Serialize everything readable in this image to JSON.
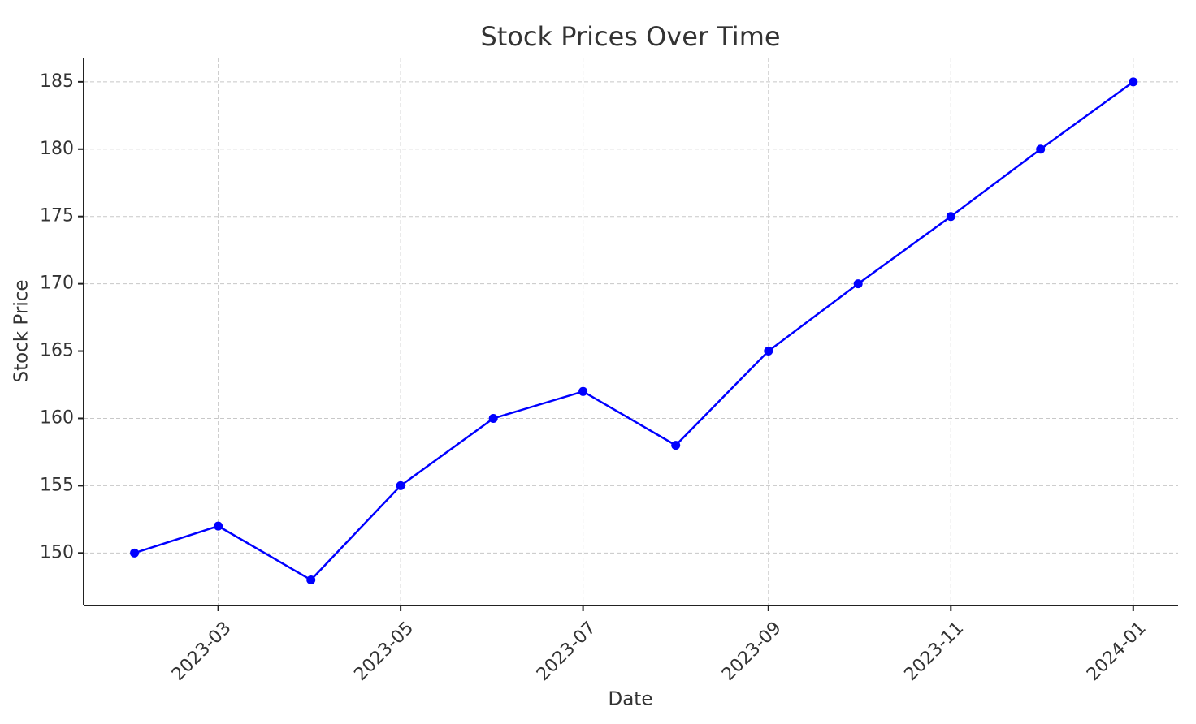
{
  "chart_data": {
    "type": "line",
    "title": "Stock Prices Over Time",
    "x_label": "Date",
    "y_label": "Stock Price",
    "x": [
      "2023-02",
      "2023-03",
      "2023-04",
      "2023-05",
      "2023-06",
      "2023-07",
      "2023-08",
      "2023-09",
      "2023-10",
      "2023-11",
      "2023-12",
      "2024-01"
    ],
    "series": [
      {
        "name": "Stock Price",
        "color": "#0000ff",
        "values": [
          150,
          152,
          148,
          155,
          160,
          162,
          158,
          165,
          170,
          175,
          180,
          185
        ]
      }
    ],
    "xlim": [
      "2023-01-15",
      "2024-01-16"
    ],
    "xticks": [
      "2023-03",
      "2023-05",
      "2023-07",
      "2023-09",
      "2023-11",
      "2024-01"
    ],
    "ylim": [
      146.1,
      186.8
    ],
    "yticks": [
      150,
      155,
      160,
      165,
      170,
      175,
      180,
      185
    ],
    "grid": true
  }
}
